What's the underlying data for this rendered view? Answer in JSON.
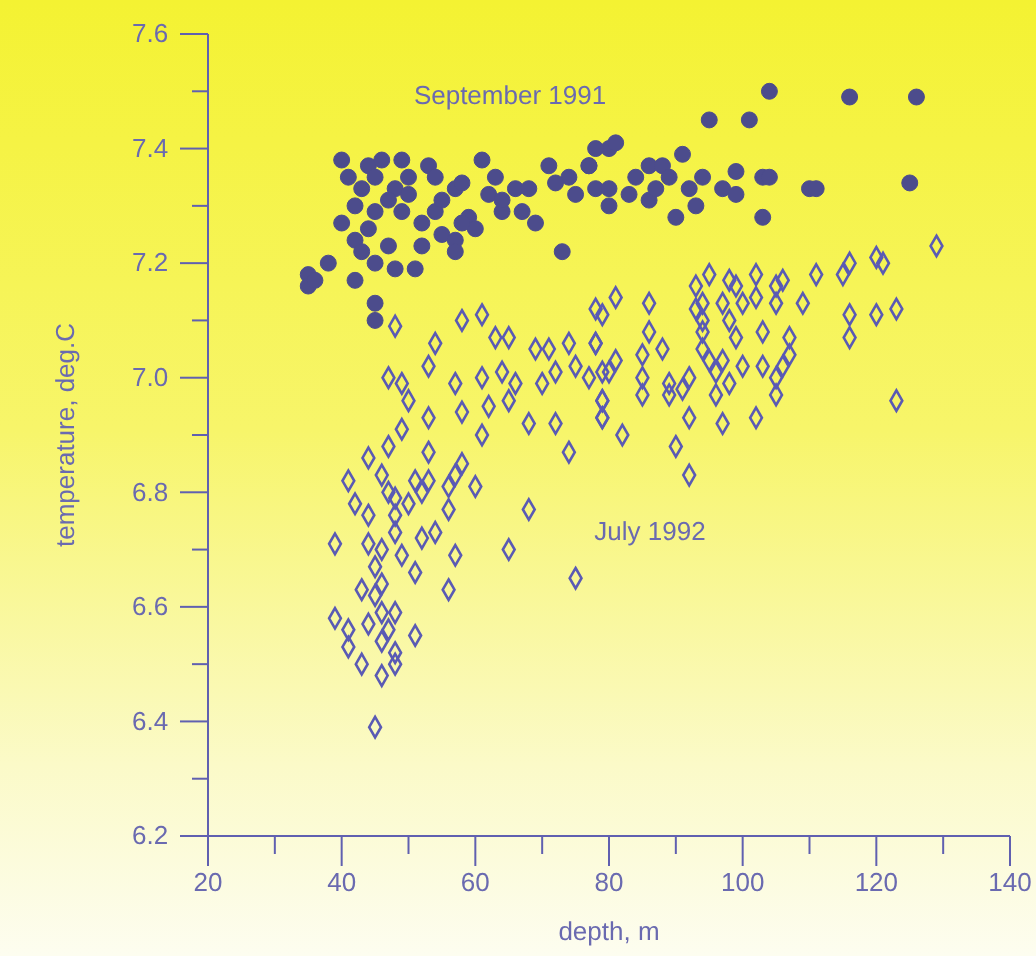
{
  "chart_data": {
    "type": "scatter",
    "xlabel": "depth, m",
    "ylabel": "temperature, deg.C",
    "xlim": [
      20,
      140
    ],
    "ylim": [
      6.2,
      7.6
    ],
    "xticks": [
      20,
      {
        "value": 30,
        "label": null
      },
      40,
      {
        "value": 50,
        "label": null
      },
      60,
      {
        "value": 70,
        "label": null
      },
      80,
      {
        "value": 90,
        "label": null
      },
      100,
      {
        "value": 110,
        "label": null
      },
      120,
      {
        "value": 130,
        "label": null
      },
      140
    ],
    "yticks": [
      6.2,
      {
        "value": 6.3,
        "label": null
      },
      6.4,
      {
        "value": 6.5,
        "label": null
      },
      6.6,
      {
        "value": 6.7,
        "label": null
      },
      6.8,
      {
        "value": 6.9,
        "label": null
      },
      {
        "value": 7.0,
        "label": "7.0"
      },
      {
        "value": 7.1,
        "label": null
      },
      7.2,
      {
        "value": 7.3,
        "label": null
      },
      7.4,
      {
        "value": 7.5,
        "label": null
      },
      7.6
    ],
    "grid": false,
    "series": [
      {
        "name": "September 1991",
        "color": "#4c4c8c",
        "marker": "circle",
        "x": [
          40,
          44,
          46,
          49,
          41,
          43,
          45,
          48,
          50,
          53,
          54,
          57,
          61,
          63,
          66,
          71,
          74,
          77,
          80,
          42,
          45,
          49,
          52,
          54,
          55,
          59,
          60,
          64,
          67,
          69,
          73,
          40,
          42,
          43,
          45,
          48,
          51,
          47,
          52,
          57,
          57,
          38,
          35,
          35,
          42,
          45,
          45,
          78,
          80,
          104,
          116,
          126,
          95,
          101,
          81,
          78,
          86,
          88,
          91,
          77,
          80,
          83,
          89,
          92,
          94,
          97,
          99,
          99,
          103,
          104,
          110,
          111,
          125,
          90,
          93,
          103,
          86,
          47,
          50,
          55,
          58,
          62,
          68,
          72,
          75,
          84,
          87,
          36,
          44,
          58,
          64
        ],
        "values": [
          7.38,
          7.37,
          7.38,
          7.38,
          7.35,
          7.33,
          7.35,
          7.33,
          7.35,
          7.37,
          7.35,
          7.33,
          7.38,
          7.35,
          7.33,
          7.37,
          7.35,
          7.37,
          7.4,
          7.3,
          7.29,
          7.29,
          7.27,
          7.29,
          7.25,
          7.28,
          7.26,
          7.29,
          7.29,
          7.27,
          7.22,
          7.27,
          7.24,
          7.22,
          7.2,
          7.19,
          7.19,
          7.23,
          7.23,
          7.24,
          7.22,
          7.2,
          7.18,
          7.16,
          7.17,
          7.13,
          7.1,
          7.33,
          7.3,
          7.5,
          7.49,
          7.49,
          7.45,
          7.45,
          7.41,
          7.4,
          7.37,
          7.37,
          7.39,
          7.37,
          7.33,
          7.32,
          7.35,
          7.33,
          7.35,
          7.33,
          7.36,
          7.32,
          7.35,
          7.35,
          7.33,
          7.33,
          7.34,
          7.28,
          7.3,
          7.28,
          7.31,
          7.31,
          7.32,
          7.31,
          7.34,
          7.32,
          7.33,
          7.34,
          7.32,
          7.35,
          7.33,
          7.17,
          7.26,
          7.27,
          7.31
        ]
      },
      {
        "name": "July 1992",
        "color": "#5a5ab4",
        "marker": "diamond",
        "x": [
          48,
          54,
          58,
          61,
          63,
          65,
          69,
          71,
          74,
          78,
          47,
          49,
          53,
          57,
          61,
          64,
          66,
          70,
          72,
          75,
          79,
          50,
          53,
          58,
          62,
          65,
          68,
          72,
          79,
          79,
          49,
          61,
          74,
          47,
          44,
          53,
          58,
          41,
          46,
          51,
          53,
          56,
          57,
          60,
          42,
          47,
          48,
          50,
          52,
          44,
          48,
          56,
          68,
          39,
          44,
          48,
          52,
          54,
          46,
          49,
          57,
          65,
          45,
          51,
          43,
          46,
          48,
          56,
          75,
          39,
          41,
          44,
          47,
          41,
          46,
          48,
          51,
          43,
          46,
          48,
          45,
          46,
          45,
          129,
          120,
          121,
          116,
          115,
          111,
          106,
          102,
          95,
          93,
          98,
          99,
          105,
          102,
          100,
          97,
          94,
          93,
          86,
          81,
          78,
          79,
          109,
          105,
          116,
          120,
          123,
          94,
          98,
          86,
          94,
          99,
          103,
          107,
          116,
          78,
          81,
          85,
          88,
          94,
          95,
          97,
          100,
          103,
          107,
          106,
          80,
          77,
          85,
          89,
          92,
          96,
          105,
          85,
          89,
          91,
          96,
          98,
          105,
          79,
          79,
          92,
          102,
          97,
          82,
          90,
          92,
          123
        ],
        "values": [
          7.09,
          7.06,
          7.1,
          7.11,
          7.07,
          7.07,
          7.05,
          7.05,
          7.06,
          7.06,
          7.0,
          6.99,
          7.02,
          6.99,
          7.0,
          7.01,
          6.99,
          6.99,
          7.01,
          7.02,
          7.01,
          6.96,
          6.93,
          6.94,
          6.95,
          6.96,
          6.92,
          6.92,
          6.96,
          6.93,
          6.91,
          6.9,
          6.87,
          6.88,
          6.86,
          6.87,
          6.85,
          6.82,
          6.83,
          6.82,
          6.82,
          6.81,
          6.83,
          6.81,
          6.78,
          6.8,
          6.79,
          6.78,
          6.8,
          6.76,
          6.76,
          6.77,
          6.77,
          6.71,
          6.71,
          6.73,
          6.72,
          6.73,
          6.7,
          6.69,
          6.69,
          6.7,
          6.67,
          6.66,
          6.63,
          6.64,
          6.59,
          6.63,
          6.65,
          6.58,
          6.56,
          6.57,
          6.56,
          6.53,
          6.54,
          6.52,
          6.55,
          6.5,
          6.48,
          6.5,
          6.39,
          6.59,
          6.62,
          7.23,
          7.21,
          7.2,
          7.2,
          7.18,
          7.18,
          7.17,
          7.18,
          7.18,
          7.16,
          7.17,
          7.16,
          7.16,
          7.14,
          7.13,
          7.13,
          7.13,
          7.12,
          7.13,
          7.14,
          7.12,
          7.11,
          7.13,
          7.13,
          7.11,
          7.11,
          7.12,
          7.1,
          7.1,
          7.08,
          7.08,
          7.07,
          7.08,
          7.07,
          7.07,
          7.06,
          7.03,
          7.04,
          7.05,
          7.05,
          7.03,
          7.03,
          7.02,
          7.02,
          7.04,
          7.02,
          7.01,
          7.0,
          7.0,
          6.99,
          7.0,
          7.01,
          7.0,
          6.97,
          6.97,
          6.98,
          6.97,
          6.99,
          6.97,
          6.96,
          6.93,
          6.93,
          6.93,
          6.92,
          6.9,
          6.88,
          6.83,
          6.96
        ]
      }
    ]
  }
}
